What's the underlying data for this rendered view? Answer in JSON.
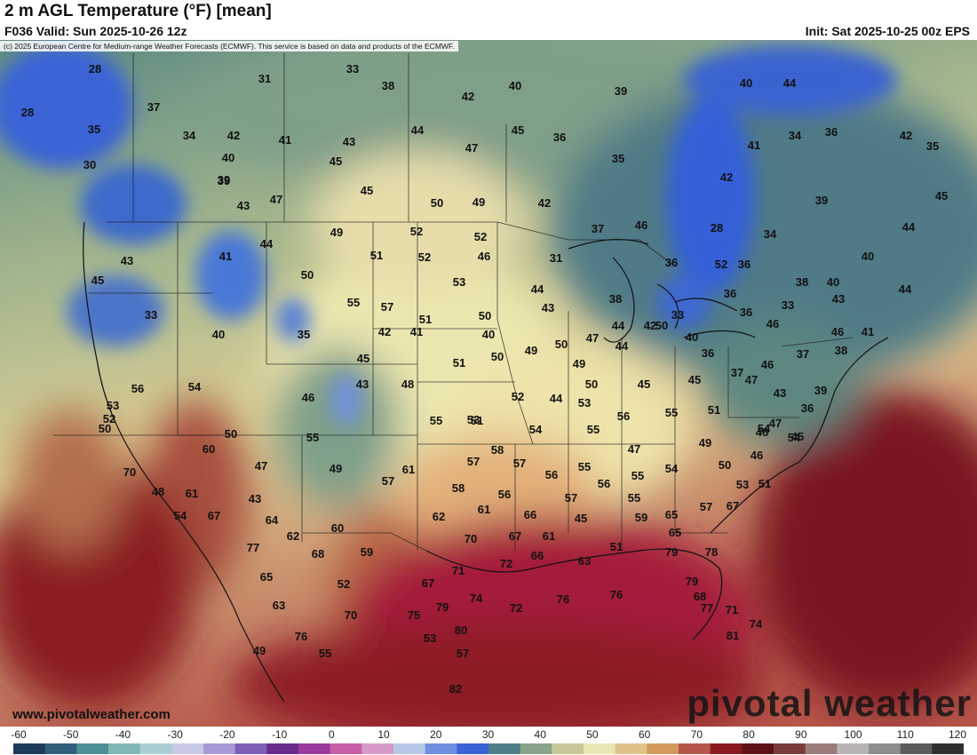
{
  "header": {
    "title": "2 m AGL Temperature (°F) [mean]",
    "valid": "F036 Valid: Sun 2025-10-26 12z",
    "init": "Init: Sat 2025-10-25 00z EPS"
  },
  "copyright": "(c) 2025 European Centre for Medium-range Weather Forecasts (ECMWF). This service is based on data and products of the ECMWF.",
  "footer": {
    "website": "www.pivotalweather.com",
    "brand": "pivotal weather"
  },
  "colorbar": {
    "ticks": [
      "-60",
      "-50",
      "-40",
      "-30",
      "-20",
      "-10",
      "0",
      "10",
      "20",
      "30",
      "40",
      "50",
      "60",
      "70",
      "80",
      "90",
      "100",
      "110",
      "120"
    ]
  },
  "colors": {
    "cold": "#3a63d6",
    "cool": "#4d7f86",
    "mild": "#e9e7b4",
    "warm": "#d39a5e",
    "hot": "#8a1a1f",
    "gulf": "#a51d3a"
  },
  "point_labels": [
    "28",
    "33",
    "31",
    "38",
    "42",
    "40",
    "39",
    "28",
    "37",
    "34",
    "42",
    "41",
    "43",
    "45",
    "44",
    "47",
    "45",
    "39",
    "35",
    "30",
    "40",
    "39",
    "43",
    "47",
    "45",
    "50",
    "49",
    "42",
    "36",
    "35",
    "44",
    "40",
    "34",
    "36",
    "42",
    "35",
    "41",
    "42",
    "39",
    "45",
    "40",
    "44",
    "49",
    "52",
    "52",
    "37",
    "46",
    "28",
    "34",
    "44",
    "38",
    "36",
    "52",
    "51",
    "52",
    "46",
    "31",
    "36",
    "43",
    "50",
    "53",
    "44",
    "43",
    "38",
    "36",
    "40",
    "33",
    "45",
    "41",
    "33",
    "55",
    "57",
    "51",
    "50",
    "33",
    "36",
    "46",
    "43",
    "44",
    "40",
    "44",
    "35",
    "42",
    "41",
    "40",
    "49",
    "50",
    "47",
    "44",
    "50",
    "45",
    "51",
    "50",
    "49",
    "40",
    "42",
    "36",
    "46",
    "37",
    "46",
    "41",
    "38",
    "43",
    "46",
    "48",
    "50",
    "45",
    "45",
    "53",
    "52",
    "44",
    "37",
    "50",
    "53",
    "56",
    "54",
    "52",
    "55",
    "51",
    "53",
    "47",
    "43",
    "36",
    "39",
    "47",
    "56",
    "55",
    "51",
    "54",
    "54",
    "55",
    "47",
    "49",
    "46",
    "45",
    "60",
    "46",
    "50",
    "55",
    "58",
    "57",
    "57",
    "55",
    "56",
    "55",
    "54",
    "50",
    "54",
    "70",
    "61",
    "43",
    "47",
    "49",
    "57",
    "61",
    "58",
    "61",
    "56",
    "56",
    "57",
    "55",
    "65",
    "57",
    "53",
    "51",
    "48",
    "54",
    "64",
    "62",
    "60",
    "59",
    "62",
    "66",
    "45",
    "59",
    "65",
    "67",
    "67",
    "68",
    "70",
    "67",
    "61",
    "72",
    "66",
    "63",
    "51",
    "79",
    "78",
    "79",
    "77",
    "65",
    "52",
    "67",
    "71",
    "72",
    "76",
    "76",
    "77",
    "71",
    "63",
    "70",
    "75",
    "79",
    "74",
    "68",
    "80",
    "81",
    "76",
    "49",
    "53",
    "57",
    "74",
    "82",
    "55"
  ]
}
